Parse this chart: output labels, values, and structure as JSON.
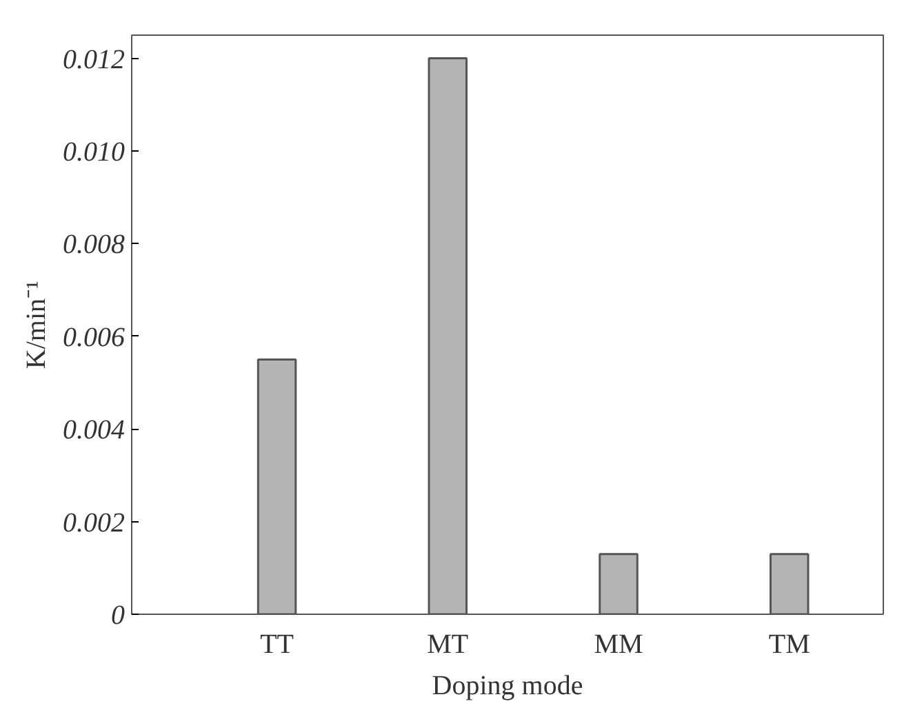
{
  "chart_data": {
    "type": "bar",
    "xlabel": "Doping mode",
    "ylabel": "K/min⁻¹",
    "categories": [
      "TT",
      "MT",
      "MM",
      "TM"
    ],
    "values": [
      0.0055,
      0.012,
      0.0013,
      0.0013
    ],
    "color": "#b4b4b4",
    "ylim": [
      0,
      0.0125
    ],
    "yticks": [
      0,
      0.002,
      0.004,
      0.006,
      0.008,
      {
        "value": 0.01,
        "label": "0.010"
      },
      0.012
    ],
    "grid": false
  }
}
